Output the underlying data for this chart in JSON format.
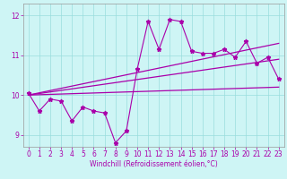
{
  "xlabel": "Windchill (Refroidissement éolien,°C)",
  "background_color": "#cef5f5",
  "line_color": "#aa00aa",
  "grid_color": "#99dddd",
  "ylim": [
    8.7,
    12.3
  ],
  "xlim": [
    -0.5,
    23.5
  ],
  "yticks": [
    9,
    10,
    11,
    12
  ],
  "xticks": [
    0,
    1,
    2,
    3,
    4,
    5,
    6,
    7,
    8,
    9,
    10,
    11,
    12,
    13,
    14,
    15,
    16,
    17,
    18,
    19,
    20,
    21,
    22,
    23
  ],
  "series1_x": [
    0,
    1,
    2,
    3,
    4,
    5,
    6,
    7,
    8,
    9,
    10,
    11,
    12,
    13,
    14,
    15,
    16,
    17,
    18,
    19,
    20,
    21,
    22,
    23
  ],
  "series1_y": [
    10.05,
    9.6,
    9.9,
    9.85,
    9.35,
    9.7,
    9.6,
    9.55,
    8.8,
    9.1,
    10.65,
    11.85,
    11.15,
    11.9,
    11.85,
    11.1,
    11.05,
    11.05,
    11.15,
    10.95,
    11.35,
    10.8,
    10.95,
    10.4
  ],
  "smooth_lines": [
    {
      "x_start": 0,
      "y_start": 10.0,
      "x_end": 23,
      "y_end": 10.2
    },
    {
      "x_start": 0,
      "y_start": 10.0,
      "x_end": 23,
      "y_end": 10.9
    },
    {
      "x_start": 0,
      "y_start": 10.0,
      "x_end": 23,
      "y_end": 11.3
    }
  ],
  "xlabel_fontsize": 5.5,
  "tick_fontsize": 5.5
}
